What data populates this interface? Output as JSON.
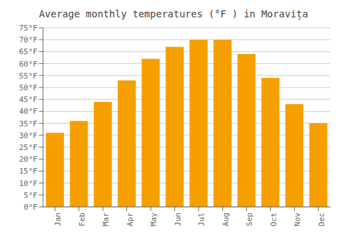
{
  "chart_data": {
    "type": "bar",
    "title": "Average monthly temperatures (°F ) in Moravița",
    "categories": [
      "Jan",
      "Feb",
      "Mar",
      "Apr",
      "May",
      "Jun",
      "Jul",
      "Aug",
      "Sep",
      "Oct",
      "Nov",
      "Dec"
    ],
    "values": [
      31,
      36,
      44,
      53,
      62,
      67,
      70,
      70,
      64,
      54,
      43,
      35
    ],
    "color": "#F5A000",
    "ylim": [
      0,
      75
    ],
    "yticks": [
      {
        "value": 0,
        "label": "0°F"
      },
      {
        "value": 5,
        "label": "5°F"
      },
      {
        "value": 10,
        "label": "10°F"
      },
      {
        "value": 15,
        "label": "15°F"
      },
      {
        "value": 20,
        "label": "20°F"
      },
      {
        "value": 25,
        "label": "25°F"
      },
      {
        "value": 30,
        "label": "30°F"
      },
      {
        "value": 35,
        "label": "35°F"
      },
      {
        "value": 40,
        "label": "40°F"
      },
      {
        "value": 45,
        "label": "45°F"
      },
      {
        "value": 50,
        "label": "50°F"
      },
      {
        "value": 55,
        "label": "55°F"
      },
      {
        "value": 60,
        "label": "60°F"
      },
      {
        "value": 65,
        "label": "65°F"
      },
      {
        "value": 70,
        "label": "70°F"
      },
      {
        "value": 75,
        "label": "75°F"
      }
    ],
    "grid": true
  }
}
